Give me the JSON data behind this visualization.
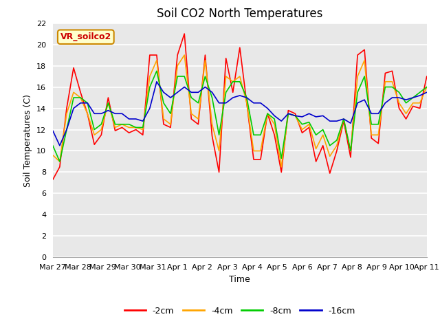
{
  "title": "Soil CO2 North Temperatures",
  "xlabel": "Time",
  "ylabel": "Soil Temperatures (C)",
  "ylim": [
    0,
    22
  ],
  "yticks": [
    0,
    2,
    4,
    6,
    8,
    10,
    12,
    14,
    16,
    18,
    20,
    22
  ],
  "xtick_labels": [
    "Mar 27",
    "Mar 28",
    "Mar 29",
    "Mar 30",
    "Mar 31",
    "Apr 1",
    "Apr 2",
    "Apr 3",
    "Apr 4",
    "Apr 5",
    "Apr 6",
    "Apr 7",
    "Apr 8",
    "Apr 9",
    "Apr 10",
    "Apr 11"
  ],
  "colors": {
    "-2cm": "#ff0000",
    "-4cm": "#ffa500",
    "-8cm": "#00cc00",
    "-16cm": "#0000cc"
  },
  "annotation_label": "VR_soilco2",
  "annotation_bg": "#ffffcc",
  "annotation_border": "#cc8800",
  "fig_bg": "#ffffff",
  "plot_bg": "#e8e8e8",
  "grid_color": "#ffffff",
  "series": {
    "-2cm": [
      7.3,
      8.5,
      14.0,
      17.8,
      15.5,
      13.5,
      10.6,
      11.5,
      15.0,
      11.9,
      12.2,
      11.7,
      12.0,
      11.5,
      19.0,
      19.0,
      12.5,
      12.2,
      19.0,
      21.0,
      13.0,
      12.5,
      19.0,
      11.4,
      8.0,
      18.7,
      15.5,
      19.7,
      14.5,
      9.2,
      9.2,
      13.5,
      11.5,
      8.0,
      13.8,
      13.5,
      11.7,
      12.2,
      9.0,
      10.5,
      7.9,
      10.0,
      12.8,
      9.4,
      19.0,
      19.5,
      11.2,
      10.7,
      17.3,
      17.5,
      14.0,
      13.0,
      14.2,
      14.0,
      17.0
    ],
    "-4cm": [
      9.6,
      9.0,
      13.5,
      15.5,
      15.0,
      13.5,
      11.5,
      12.0,
      14.5,
      12.2,
      12.5,
      12.2,
      12.2,
      12.0,
      17.0,
      18.5,
      13.0,
      12.5,
      18.0,
      19.0,
      13.5,
      13.0,
      18.5,
      12.5,
      10.0,
      17.0,
      16.5,
      17.0,
      14.5,
      10.0,
      10.0,
      13.5,
      12.5,
      8.5,
      13.5,
      13.3,
      12.0,
      12.5,
      10.2,
      11.5,
      9.5,
      10.5,
      13.0,
      10.0,
      17.0,
      18.5,
      11.5,
      11.5,
      16.5,
      16.5,
      14.5,
      13.5,
      14.5,
      14.5,
      16.0
    ],
    "-8cm": [
      10.5,
      9.0,
      12.0,
      15.0,
      15.0,
      14.5,
      12.0,
      12.5,
      14.5,
      12.5,
      12.5,
      12.5,
      12.2,
      12.2,
      16.0,
      17.5,
      14.5,
      13.5,
      17.0,
      17.0,
      15.0,
      14.5,
      17.0,
      15.0,
      11.5,
      15.5,
      16.5,
      16.5,
      15.0,
      11.5,
      11.5,
      13.5,
      13.0,
      9.3,
      13.5,
      13.3,
      12.5,
      12.7,
      11.5,
      12.0,
      10.5,
      11.0,
      13.0,
      10.0,
      15.5,
      17.0,
      12.5,
      12.5,
      16.0,
      16.0,
      15.5,
      14.5,
      15.0,
      15.5,
      16.0
    ],
    "-16cm": [
      11.9,
      10.5,
      12.0,
      14.0,
      14.5,
      14.5,
      13.5,
      13.5,
      13.8,
      13.5,
      13.5,
      13.0,
      13.0,
      12.8,
      14.0,
      16.5,
      15.5,
      15.0,
      15.5,
      16.0,
      15.5,
      15.5,
      16.0,
      15.5,
      14.5,
      14.5,
      15.0,
      15.2,
      15.0,
      14.5,
      14.5,
      14.0,
      13.3,
      12.8,
      13.5,
      13.3,
      13.2,
      13.5,
      13.2,
      13.3,
      12.8,
      12.8,
      13.0,
      12.6,
      14.5,
      14.8,
      13.5,
      13.5,
      14.5,
      15.0,
      15.0,
      14.8,
      15.0,
      15.2,
      15.5
    ]
  },
  "n_points": 55,
  "title_fontsize": 12,
  "label_fontsize": 9,
  "tick_fontsize": 8,
  "legend_fontsize": 9,
  "line_width": 1.2
}
